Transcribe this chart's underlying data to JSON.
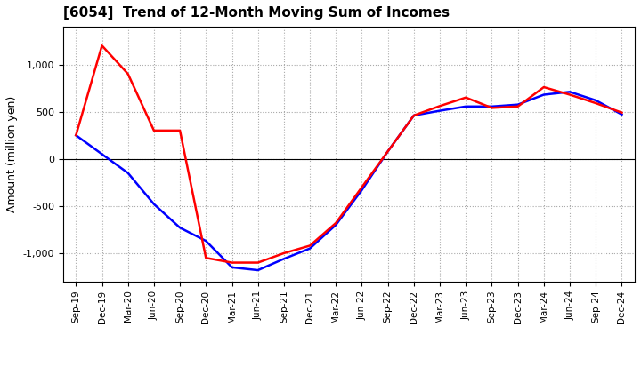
{
  "title": "[6054]  Trend of 12-Month Moving Sum of Incomes",
  "ylabel": "Amount (million yen)",
  "background_color": "#ffffff",
  "grid_color": "#aaaaaa",
  "xlabels": [
    "Sep-19",
    "Dec-19",
    "Mar-20",
    "Jun-20",
    "Sep-20",
    "Dec-20",
    "Mar-21",
    "Jun-21",
    "Sep-21",
    "Dec-21",
    "Mar-22",
    "Jun-22",
    "Sep-22",
    "Dec-22",
    "Mar-23",
    "Jun-23",
    "Sep-23",
    "Dec-23",
    "Mar-24",
    "Jun-24",
    "Sep-24",
    "Dec-24"
  ],
  "ordinary_income": [
    250,
    50,
    -150,
    -480,
    -730,
    -870,
    -1150,
    -1180,
    -1060,
    -950,
    -700,
    -330,
    80,
    460,
    510,
    555,
    555,
    575,
    680,
    710,
    620,
    470
  ],
  "net_income": [
    250,
    1200,
    900,
    300,
    300,
    -1050,
    -1100,
    -1100,
    -1000,
    -920,
    -680,
    -300,
    80,
    460,
    560,
    650,
    540,
    555,
    760,
    680,
    590,
    490
  ],
  "ordinary_color": "#0000ff",
  "net_color": "#ff0000",
  "ylim": [
    -1300,
    1400
  ],
  "yticks": [
    -1000,
    -500,
    0,
    500,
    1000
  ],
  "line_width": 1.8
}
